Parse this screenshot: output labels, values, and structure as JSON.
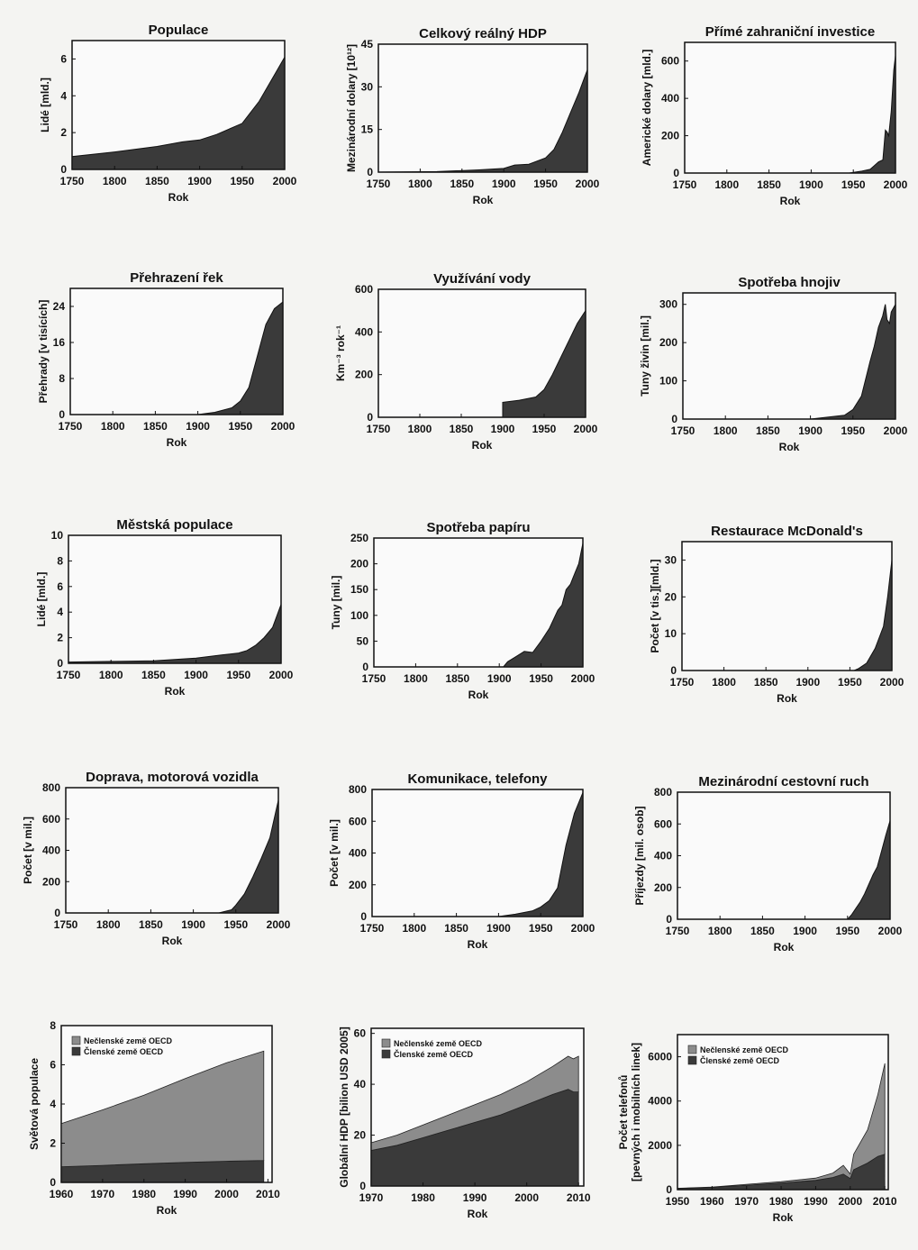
{
  "chart_data": [
    {
      "type": "area",
      "title": "Populace",
      "xlabel": "Rok",
      "ylabel": "Lidé [mld.]",
      "xlim": [
        1750,
        2000
      ],
      "ylim": [
        0,
        7
      ],
      "xticks": [
        1750,
        1800,
        1850,
        1900,
        1950,
        2000
      ],
      "yticks": [
        0,
        2,
        4,
        6
      ],
      "x": [
        1750,
        1800,
        1850,
        1880,
        1900,
        1920,
        1950,
        1970,
        1990,
        2000
      ],
      "values": [
        0.7,
        0.95,
        1.25,
        1.5,
        1.6,
        1.9,
        2.5,
        3.7,
        5.3,
        6.1
      ]
    },
    {
      "type": "area",
      "title": "Celkový reálný HDP",
      "xlabel": "Rok",
      "ylabel": "Mezinárodní dolary [10¹²]",
      "xlim": [
        1750,
        2000
      ],
      "ylim": [
        0,
        45
      ],
      "xticks": [
        1750,
        1800,
        1850,
        1900,
        1950,
        2000
      ],
      "yticks": [
        0,
        15,
        30,
        45
      ],
      "x": [
        1750,
        1820,
        1870,
        1900,
        1913,
        1930,
        1950,
        1960,
        1970,
        1980,
        1990,
        2000
      ],
      "values": [
        0,
        0.2,
        0.8,
        1.3,
        2.5,
        2.8,
        5,
        8,
        14,
        21,
        28,
        36
      ]
    },
    {
      "type": "area",
      "title": "Přímé zahraniční investice",
      "xlabel": "Rok",
      "ylabel": "Americké dolary [mld.]",
      "xlim": [
        1750,
        2000
      ],
      "ylim": [
        0,
        700
      ],
      "xticks": [
        1750,
        1800,
        1850,
        1900,
        1950,
        2000
      ],
      "yticks": [
        0,
        200,
        400,
        600
      ],
      "x": [
        1750,
        1945,
        1960,
        1970,
        1975,
        1980,
        1985,
        1988,
        1990,
        1992,
        1995,
        1998,
        2000
      ],
      "values": [
        0,
        0,
        10,
        20,
        40,
        60,
        70,
        230,
        220,
        200,
        330,
        550,
        630
      ]
    },
    {
      "type": "area",
      "title": "Přehrazení řek",
      "xlabel": "Rok",
      "ylabel": "Přehrady [v tisících]",
      "xlim": [
        1750,
        2000
      ],
      "ylim": [
        0,
        28
      ],
      "xticks": [
        1750,
        1800,
        1850,
        1900,
        1950,
        2000
      ],
      "yticks": [
        0,
        8,
        16,
        24
      ],
      "x": [
        1750,
        1900,
        1920,
        1940,
        1950,
        1960,
        1970,
        1980,
        1990,
        2000
      ],
      "values": [
        0,
        0,
        0.5,
        1.5,
        3,
        6,
        13,
        20,
        23.5,
        25
      ]
    },
    {
      "type": "area",
      "title": "Využívání vody",
      "xlabel": "Rok",
      "ylabel": "Km⁻³ rok⁻¹",
      "xlim": [
        1750,
        2000
      ],
      "ylim": [
        0,
        600
      ],
      "xticks": [
        1750,
        1800,
        1850,
        1900,
        1950,
        2000
      ],
      "yticks": [
        0,
        200,
        400,
        600
      ],
      "x": [
        1900,
        1920,
        1940,
        1950,
        1960,
        1970,
        1980,
        1990,
        2000
      ],
      "values": [
        70,
        80,
        95,
        130,
        200,
        280,
        360,
        440,
        500
      ]
    },
    {
      "type": "area",
      "title": "Spotřeba hnojiv",
      "xlabel": "Rok",
      "ylabel": "Tuny živin [mil.]",
      "xlim": [
        1750,
        2000
      ],
      "ylim": [
        0,
        330
      ],
      "xticks": [
        1750,
        1800,
        1850,
        1900,
        1950,
        2000
      ],
      "yticks": [
        0,
        100,
        200,
        300
      ],
      "x": [
        1750,
        1900,
        1920,
        1940,
        1950,
        1960,
        1970,
        1975,
        1980,
        1985,
        1988,
        1990,
        1993,
        1995,
        2000
      ],
      "values": [
        0,
        0,
        5,
        10,
        25,
        60,
        150,
        190,
        240,
        270,
        300,
        260,
        250,
        280,
        300
      ]
    },
    {
      "type": "area",
      "title": "Městská populace",
      "xlabel": "Rok",
      "ylabel": "Lidé [mld.]",
      "xlim": [
        1750,
        2000
      ],
      "ylim": [
        0,
        10
      ],
      "xticks": [
        1750,
        1800,
        1850,
        1900,
        1950,
        2000
      ],
      "yticks": [
        0,
        2,
        4,
        6,
        8,
        10
      ],
      "x": [
        1750,
        1800,
        1850,
        1900,
        1930,
        1950,
        1960,
        1970,
        1980,
        1990,
        2000
      ],
      "values": [
        0.1,
        0.15,
        0.2,
        0.4,
        0.65,
        0.8,
        1.0,
        1.4,
        2.0,
        2.8,
        4.6
      ]
    },
    {
      "type": "area",
      "title": "Spotřeba papíru",
      "xlabel": "Rok",
      "ylabel": "Tuny [mil.]",
      "xlim": [
        1750,
        2000
      ],
      "ylim": [
        0,
        250
      ],
      "xticks": [
        1750,
        1800,
        1850,
        1900,
        1950,
        2000
      ],
      "yticks": [
        0,
        50,
        100,
        150,
        200,
        250
      ],
      "x": [
        1905,
        1910,
        1920,
        1930,
        1940,
        1950,
        1960,
        1970,
        1975,
        1980,
        1985,
        1990,
        1995,
        2000
      ],
      "values": [
        0,
        10,
        20,
        30,
        28,
        50,
        75,
        110,
        120,
        150,
        160,
        180,
        200,
        240
      ]
    },
    {
      "type": "area",
      "title": "Restaurace McDonald's",
      "xlabel": "Rok",
      "ylabel": "Počet [v tis.][mld.]",
      "xlim": [
        1750,
        2000
      ],
      "ylim": [
        0,
        35
      ],
      "xticks": [
        1750,
        1800,
        1850,
        1900,
        1950,
        2000
      ],
      "yticks": [
        0,
        10,
        20,
        30
      ],
      "x": [
        1955,
        1960,
        1970,
        1980,
        1990,
        1995,
        2000
      ],
      "values": [
        0,
        0.5,
        2,
        6,
        12,
        20,
        30
      ]
    },
    {
      "type": "area",
      "title": "Doprava, motorová vozidla",
      "xlabel": "Rok",
      "ylabel": "Počet [v mil.]",
      "xlim": [
        1750,
        2000
      ],
      "ylim": [
        0,
        800
      ],
      "xticks": [
        1750,
        1800,
        1850,
        1900,
        1950,
        2000
      ],
      "yticks": [
        0,
        200,
        400,
        600,
        800
      ],
      "x": [
        1930,
        1945,
        1950,
        1960,
        1970,
        1980,
        1990,
        2000
      ],
      "values": [
        0,
        20,
        50,
        120,
        230,
        350,
        480,
        720
      ]
    },
    {
      "type": "area",
      "title": "Komunikace, telefony",
      "xlabel": "Rok",
      "ylabel": "Počet [v mil.]",
      "xlim": [
        1750,
        2000
      ],
      "ylim": [
        0,
        800
      ],
      "xticks": [
        1750,
        1800,
        1850,
        1900,
        1950,
        2000
      ],
      "yticks": [
        0,
        200,
        400,
        600,
        800
      ],
      "x": [
        1900,
        1920,
        1940,
        1950,
        1960,
        1970,
        1980,
        1990,
        2000
      ],
      "values": [
        0,
        15,
        35,
        60,
        100,
        180,
        450,
        650,
        780
      ]
    },
    {
      "type": "area",
      "title": "Mezinárodní cestovní ruch",
      "xlabel": "Rok",
      "ylabel": "Příjezdy [mil. osob]",
      "xlim": [
        1750,
        2000
      ],
      "ylim": [
        0,
        800
      ],
      "xticks": [
        1750,
        1800,
        1850,
        1900,
        1950,
        2000
      ],
      "yticks": [
        0,
        200,
        400,
        600,
        800
      ],
      "x": [
        1950,
        1955,
        1960,
        1965,
        1970,
        1975,
        1980,
        1985,
        1990,
        1995,
        2000
      ],
      "values": [
        0,
        30,
        70,
        110,
        160,
        220,
        280,
        330,
        430,
        530,
        620
      ]
    },
    {
      "type": "area",
      "stacked": true,
      "title": "",
      "xlabel": "Rok",
      "ylabel": "Světová populace",
      "xlim": [
        1960,
        2011
      ],
      "ylim": [
        0,
        8
      ],
      "xticks": [
        1960,
        1970,
        1980,
        1990,
        2000,
        2010
      ],
      "yticks": [
        0,
        2,
        4,
        6,
        8
      ],
      "x": [
        1960,
        1970,
        1980,
        1990,
        2000,
        2009
      ],
      "series": [
        {
          "name": "Členské země OECD",
          "values": [
            0.8,
            0.87,
            0.95,
            1.02,
            1.08,
            1.12
          ]
        },
        {
          "name": "Nečlenské země OECD",
          "values": [
            2.2,
            2.83,
            3.5,
            4.28,
            5.02,
            5.58
          ]
        }
      ],
      "legend": "top-left"
    },
    {
      "type": "area",
      "stacked": true,
      "title": "",
      "xlabel": "Rok",
      "ylabel": "Globální HDP [bilion USD 2005]",
      "xlim": [
        1970,
        2011
      ],
      "ylim": [
        0,
        62
      ],
      "xticks": [
        1970,
        1980,
        1990,
        2000,
        2010
      ],
      "yticks": [
        0,
        20,
        40,
        60
      ],
      "x": [
        1970,
        1975,
        1980,
        1985,
        1990,
        1995,
        2000,
        2005,
        2008,
        2009,
        2010
      ],
      "series": [
        {
          "name": "Členské země OECD",
          "values": [
            14,
            16,
            19,
            22,
            25,
            28,
            32,
            36,
            38,
            37,
            37
          ]
        },
        {
          "name": "Nečlenské země OECD",
          "values": [
            3,
            4,
            5,
            6,
            7,
            8,
            9,
            11,
            13,
            13,
            14
          ]
        }
      ],
      "legend": "top-left"
    },
    {
      "type": "area",
      "stacked": true,
      "title": "",
      "xlabel": "Rok",
      "ylabel": "Počet telefonů [pevných i mobilních linek]",
      "xlim": [
        1950,
        2011
      ],
      "ylim": [
        0,
        7000
      ],
      "xticks": [
        1950,
        1960,
        1970,
        1980,
        1990,
        2000,
        2010
      ],
      "yticks": [
        0,
        2000,
        4000,
        6000
      ],
      "x": [
        1950,
        1960,
        1970,
        1980,
        1990,
        1995,
        1998,
        2000,
        2001,
        2005,
        2008,
        2010
      ],
      "series": [
        {
          "name": "Členské země OECD",
          "values": [
            50,
            100,
            200,
            300,
            420,
            550,
            700,
            500,
            900,
            1200,
            1500,
            1600
          ]
        },
        {
          "name": "Nečlenské země OECD",
          "values": [
            10,
            20,
            40,
            60,
            100,
            200,
            400,
            200,
            700,
            1500,
            2800,
            4100
          ]
        }
      ],
      "legend": "top-left"
    }
  ]
}
